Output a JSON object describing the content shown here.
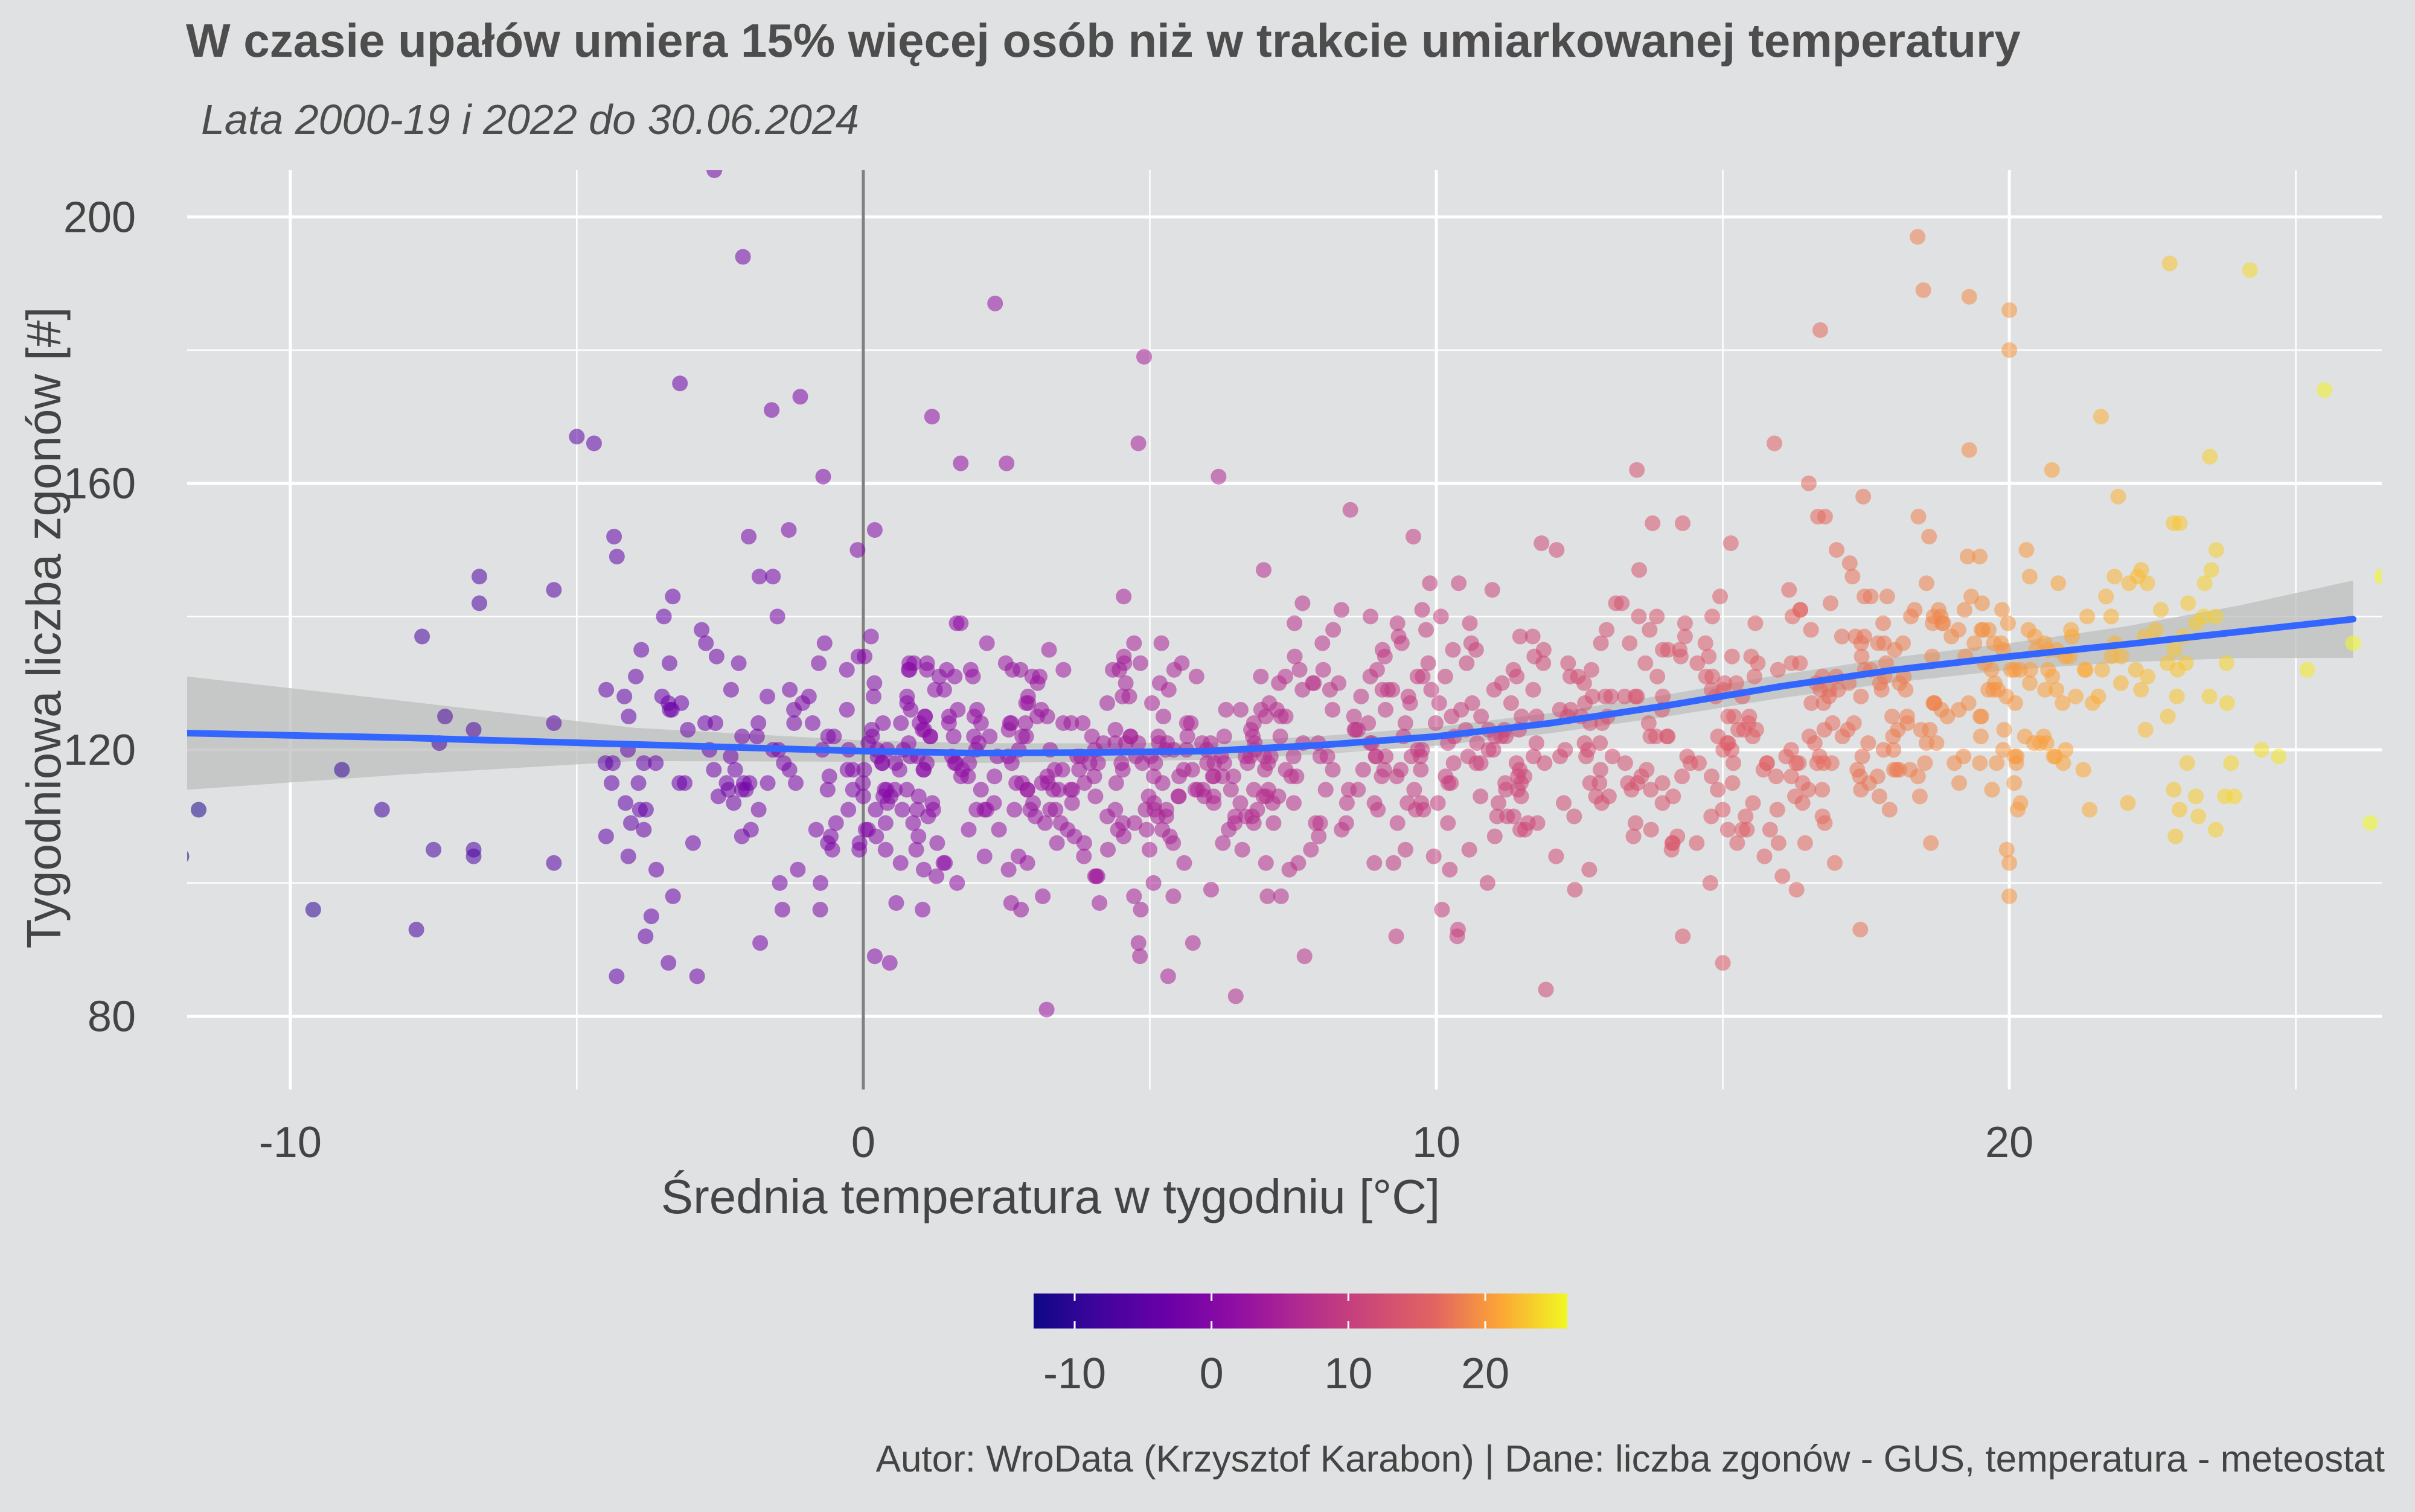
{
  "chart_data": {
    "type": "scatter",
    "title": "W czasie upałów umiera 15% więcej osób niż w trakcie umiarkowanej temperatury",
    "subtitle": "Lata 2000-19 i 2022 do 30.06.2024",
    "xlabel": "Średnia temperatura w tygodniu [°C]",
    "ylabel": "Tygodniowa liczba zgonów [#]",
    "caption": "Autor: WroData (Krzysztof Karabon) | Dane: liczba zgonów - GUS, temperatura - meteostat",
    "xlim": [
      -11.8,
      26.5
    ],
    "ylim": [
      69,
      207
    ],
    "x_ticks": [
      -10,
      0,
      10,
      20
    ],
    "x_tick_labels": [
      "-10",
      "0",
      "10",
      "20"
    ],
    "x_minor_ticks": [
      -5,
      5,
      15,
      25
    ],
    "y_ticks": [
      80,
      120,
      160,
      200
    ],
    "y_tick_labels": [
      "80",
      "120",
      "160",
      "200"
    ],
    "y_minor_ticks": [
      100,
      140,
      180
    ],
    "grid": true,
    "vline_x": 0,
    "colorscale": "plasma",
    "colorbar": {
      "range": [
        -13,
        26
      ],
      "ticks": [
        -10,
        0,
        10,
        20
      ],
      "tick_labels": [
        "-10",
        "0",
        "10",
        "20"
      ],
      "placement": "bottom"
    },
    "colors": {
      "smooth_line": "#3366ff",
      "ribbon": "#bdbdbd",
      "vline": "#808080",
      "grid": "#ffffff",
      "background": "#e0e1e2"
    },
    "anchor_points": [
      {
        "x": -11.6,
        "y": 111
      },
      {
        "x": -11.9,
        "y": 104
      },
      {
        "x": -9.1,
        "y": 117
      },
      {
        "x": -9.6,
        "y": 96
      },
      {
        "x": -8.4,
        "y": 111
      },
      {
        "x": -7.7,
        "y": 137
      },
      {
        "x": -7.5,
        "y": 105
      },
      {
        "x": -7.8,
        "y": 93
      },
      {
        "x": -7.4,
        "y": 121
      },
      {
        "x": -7.3,
        "y": 125
      },
      {
        "x": -6.7,
        "y": 146
      },
      {
        "x": -6.7,
        "y": 142
      },
      {
        "x": -6.8,
        "y": 105
      },
      {
        "x": -6.8,
        "y": 123
      },
      {
        "x": -6.8,
        "y": 104
      },
      {
        "x": -5.4,
        "y": 124
      },
      {
        "x": -5.4,
        "y": 103
      },
      {
        "x": -5.4,
        "y": 144
      },
      {
        "x": -5.0,
        "y": 167
      },
      {
        "x": -4.7,
        "y": 166
      },
      {
        "x": -4.3,
        "y": 149
      },
      {
        "x": -4.5,
        "y": 118
      },
      {
        "x": -3.9,
        "y": 111
      },
      {
        "x": -3.7,
        "y": 95
      },
      {
        "x": -3.8,
        "y": 92
      },
      {
        "x": -3.4,
        "y": 88
      },
      {
        "x": -3.2,
        "y": 175
      },
      {
        "x": -2.9,
        "y": 86
      },
      {
        "x": -2.6,
        "y": 207
      },
      {
        "x": -2.1,
        "y": 194
      },
      {
        "x": -2.0,
        "y": 152
      },
      {
        "x": -1.6,
        "y": 171
      },
      {
        "x": -1.1,
        "y": 173
      },
      {
        "x": -0.7,
        "y": 161
      },
      {
        "x": -1.3,
        "y": 153
      },
      {
        "x": -1.5,
        "y": 140
      },
      {
        "x": -1.8,
        "y": 91
      },
      {
        "x": 0.2,
        "y": 89
      },
      {
        "x": 0.2,
        "y": 153
      },
      {
        "x": -0.1,
        "y": 150
      },
      {
        "x": 2.3,
        "y": 187
      },
      {
        "x": 1.2,
        "y": 170
      },
      {
        "x": 1.7,
        "y": 163
      },
      {
        "x": 2.5,
        "y": 163
      },
      {
        "x": 3.2,
        "y": 81
      },
      {
        "x": 4.8,
        "y": 166
      },
      {
        "x": 4.9,
        "y": 179
      },
      {
        "x": 6.5,
        "y": 83
      },
      {
        "x": 6.2,
        "y": 161
      },
      {
        "x": 5.6,
        "y": 103
      },
      {
        "x": 7.7,
        "y": 89
      },
      {
        "x": 8.5,
        "y": 156
      },
      {
        "x": 9.3,
        "y": 92
      },
      {
        "x": 9.6,
        "y": 152
      },
      {
        "x": 12.1,
        "y": 150
      },
      {
        "x": 13.5,
        "y": 162
      },
      {
        "x": 14.3,
        "y": 92
      },
      {
        "x": 15.0,
        "y": 88
      },
      {
        "x": 15.9,
        "y": 166
      },
      {
        "x": 16.5,
        "y": 160
      },
      {
        "x": 16.7,
        "y": 183
      },
      {
        "x": 17.4,
        "y": 93
      },
      {
        "x": 18.4,
        "y": 197
      },
      {
        "x": 18.5,
        "y": 189
      },
      {
        "x": 19.3,
        "y": 188
      },
      {
        "x": 20.0,
        "y": 186
      },
      {
        "x": 20.0,
        "y": 180
      },
      {
        "x": 21.6,
        "y": 170
      },
      {
        "x": 22.8,
        "y": 193
      },
      {
        "x": 23.5,
        "y": 164
      },
      {
        "x": 23.6,
        "y": 140
      },
      {
        "x": 24.2,
        "y": 192
      },
      {
        "x": 24.4,
        "y": 120
      },
      {
        "x": 24.7,
        "y": 119
      },
      {
        "x": 25.2,
        "y": 132
      },
      {
        "x": 25.5,
        "y": 174
      },
      {
        "x": 26.0,
        "y": 136
      },
      {
        "x": 26.3,
        "y": 109
      },
      {
        "x": 26.5,
        "y": 146
      },
      {
        "x": 18.6,
        "y": 152
      },
      {
        "x": 19.3,
        "y": 165
      },
      {
        "x": 20.0,
        "y": 98
      },
      {
        "x": 20.0,
        "y": 103
      },
      {
        "x": 21.4,
        "y": 111
      },
      {
        "x": 22.9,
        "y": 107
      },
      {
        "x": 23.3,
        "y": 110
      },
      {
        "x": 21.9,
        "y": 158
      },
      {
        "x": 22.3,
        "y": 147
      }
    ],
    "cloud_clusters": [
      {
        "x_range": [
          -4.5,
          -0.3
        ],
        "y_mean": 118,
        "y_sd": 12,
        "count": 90
      },
      {
        "x_range": [
          -0.3,
          3.0
        ],
        "y_mean": 118,
        "y_sd": 11,
        "count": 150
      },
      {
        "x_range": [
          3.0,
          7.5
        ],
        "y_mean": 117,
        "y_sd": 11,
        "count": 190
      },
      {
        "x_range": [
          7.5,
          12.5
        ],
        "y_mean": 120,
        "y_sd": 11,
        "count": 180
      },
      {
        "x_range": [
          12.5,
          17.0
        ],
        "y_mean": 124,
        "y_sd": 12,
        "count": 170
      },
      {
        "x_range": [
          17.0,
          21.0
        ],
        "y_mean": 128,
        "y_sd": 11,
        "count": 150
      },
      {
        "x_range": [
          21.0,
          24.0
        ],
        "y_mean": 130,
        "y_sd": 10,
        "count": 55
      }
    ],
    "smooth_line": [
      {
        "x": -11.8,
        "y": 122.5
      },
      {
        "x": -8,
        "y": 121.8
      },
      {
        "x": -4,
        "y": 120.8
      },
      {
        "x": 0,
        "y": 119.8
      },
      {
        "x": 2,
        "y": 119.5
      },
      {
        "x": 4,
        "y": 119.6
      },
      {
        "x": 6,
        "y": 119.8
      },
      {
        "x": 8,
        "y": 120.7
      },
      {
        "x": 10,
        "y": 122.0
      },
      {
        "x": 12,
        "y": 124.0
      },
      {
        "x": 14,
        "y": 126.6
      },
      {
        "x": 16,
        "y": 129.5
      },
      {
        "x": 18,
        "y": 132.0
      },
      {
        "x": 20,
        "y": 134.0
      },
      {
        "x": 22,
        "y": 135.8
      },
      {
        "x": 24,
        "y": 137.7
      },
      {
        "x": 26.0,
        "y": 139.6
      }
    ],
    "ribbon_halfwidth": [
      {
        "x": -11.8,
        "y": 8.5
      },
      {
        "x": -8,
        "y": 5.5
      },
      {
        "x": -4,
        "y": 2.5
      },
      {
        "x": 0,
        "y": 1.6
      },
      {
        "x": 5,
        "y": 1.3
      },
      {
        "x": 10,
        "y": 1.4
      },
      {
        "x": 15,
        "y": 1.7
      },
      {
        "x": 20,
        "y": 2.0
      },
      {
        "x": 23,
        "y": 3.0
      },
      {
        "x": 26.0,
        "y": 5.8
      }
    ]
  }
}
